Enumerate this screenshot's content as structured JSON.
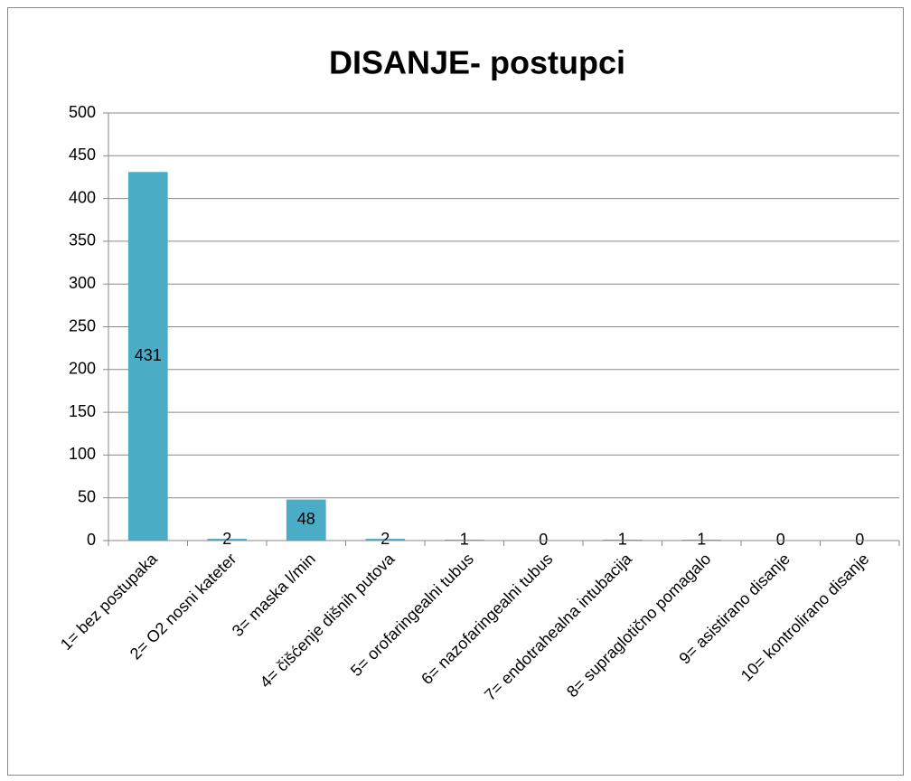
{
  "chart_data": {
    "type": "bar",
    "title": "DISANJE- postupci",
    "categories": [
      "1= bez postupaka",
      "2= O2 nosni kateter",
      "3= maska l/min",
      "4= čišćenje dišnih putova",
      "5= orofaringealni tubus",
      "6= nazofaringealni tubus",
      "7= endotrahealna intubacija",
      "8= supraglotično pomagalo",
      "9= asistirano disanje",
      "10= kontrolirano disanje"
    ],
    "values": [
      431,
      2,
      48,
      2,
      1,
      0,
      1,
      1,
      0,
      0
    ],
    "color": "#4bacc6",
    "ylim": [
      0,
      500
    ],
    "yticks": [
      0,
      50,
      100,
      150,
      200,
      250,
      300,
      350,
      400,
      450,
      500
    ],
    "grid": true
  }
}
